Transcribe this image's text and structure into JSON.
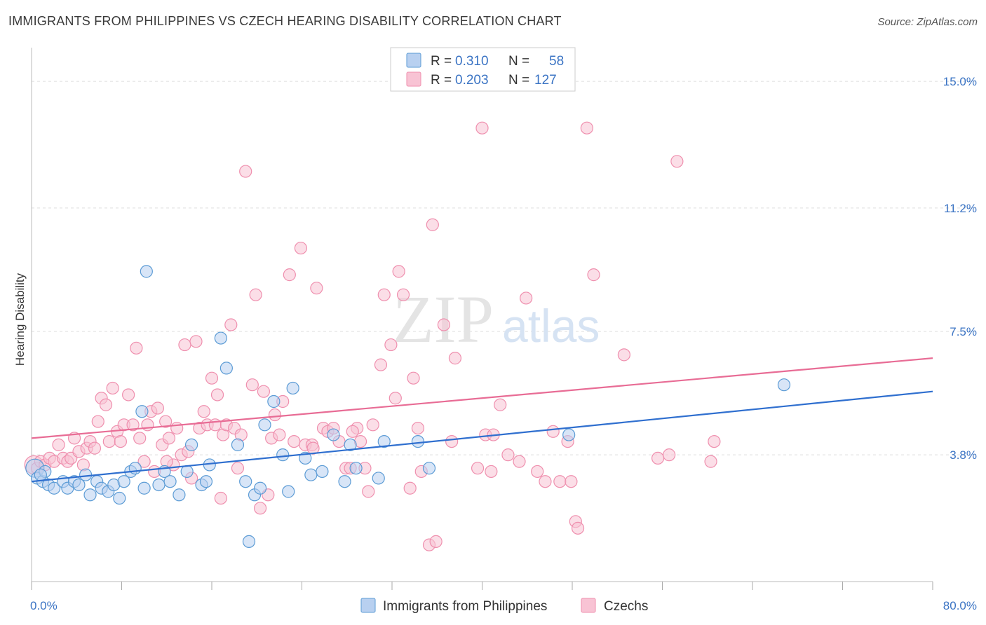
{
  "title": "IMMIGRANTS FROM PHILIPPINES VS CZECH HEARING DISABILITY CORRELATION CHART",
  "source": "Source: ZipAtlas.com",
  "watermark": {
    "left": "ZIP",
    "right": "atlas"
  },
  "colors": {
    "blue": "#5b9bd5",
    "blue_fill": "#b8d0f0",
    "blue_line": "#2f6fcf",
    "pink": "#ef8fae",
    "pink_fill": "#f8c3d4",
    "pink_line": "#e86c95",
    "tick_text": "#3b74c4",
    "grid": "#dddddd"
  },
  "legend": {
    "rows": [
      {
        "r_label": "R =",
        "r_value": "0.310",
        "n_label": "N =",
        "n_value": "58",
        "series": "blue"
      },
      {
        "r_label": "R =",
        "r_value": "0.203",
        "n_label": "N =",
        "n_value": "127",
        "series": "pink"
      }
    ]
  },
  "bottom_legend": [
    {
      "label": "Immigrants from Philippines",
      "series": "blue"
    },
    {
      "label": "Czechs",
      "series": "pink"
    }
  ],
  "chart_data": {
    "type": "scatter",
    "ylabel": "Hearing Disability",
    "xlim": [
      0,
      80
    ],
    "ylim": [
      0,
      15.8
    ],
    "x_tick_labels": [
      {
        "value": 0,
        "label": "0.0%"
      },
      {
        "value": 80,
        "label": "80.0%"
      }
    ],
    "y_ticks": [
      {
        "value": 3.8,
        "label": "3.8%"
      },
      {
        "value": 7.5,
        "label": "7.5%"
      },
      {
        "value": 11.2,
        "label": "11.2%"
      },
      {
        "value": 15.0,
        "label": "15.0%"
      }
    ],
    "x_minor_ticks": [
      0,
      8,
      16,
      24,
      32,
      40,
      48,
      56,
      64,
      72,
      80
    ],
    "grid": true,
    "series": [
      {
        "name": "Immigrants from Philippines",
        "color": "blue",
        "trend": {
          "x": [
            0,
            80
          ],
          "y": [
            3.0,
            5.7
          ]
        },
        "points": [
          [
            0.3,
            3.4
          ],
          [
            0.5,
            3.1
          ],
          [
            1.0,
            3.0
          ],
          [
            1.5,
            2.9
          ],
          [
            2.0,
            2.8
          ],
          [
            2.8,
            3.0
          ],
          [
            3.2,
            2.8
          ],
          [
            3.8,
            3.0
          ],
          [
            4.2,
            2.9
          ],
          [
            4.8,
            3.2
          ],
          [
            5.2,
            2.6
          ],
          [
            5.8,
            3.0
          ],
          [
            6.2,
            2.8
          ],
          [
            6.8,
            2.7
          ],
          [
            7.3,
            2.9
          ],
          [
            7.8,
            2.5
          ],
          [
            8.2,
            3.0
          ],
          [
            8.8,
            3.3
          ],
          [
            9.2,
            3.4
          ],
          [
            10.0,
            2.8
          ],
          [
            10.2,
            9.3
          ],
          [
            9.8,
            5.1
          ],
          [
            11.3,
            2.9
          ],
          [
            11.8,
            3.3
          ],
          [
            12.3,
            3.0
          ],
          [
            13.1,
            2.6
          ],
          [
            13.8,
            3.3
          ],
          [
            14.2,
            4.1
          ],
          [
            15.1,
            2.9
          ],
          [
            15.5,
            3.0
          ],
          [
            15.8,
            3.5
          ],
          [
            16.8,
            7.3
          ],
          [
            17.3,
            6.4
          ],
          [
            18.3,
            4.1
          ],
          [
            19.0,
            3.0
          ],
          [
            19.8,
            2.6
          ],
          [
            20.3,
            2.8
          ],
          [
            20.7,
            4.7
          ],
          [
            21.5,
            5.4
          ],
          [
            22.3,
            3.8
          ],
          [
            22.8,
            2.7
          ],
          [
            23.2,
            5.8
          ],
          [
            24.3,
            3.7
          ],
          [
            24.8,
            3.2
          ],
          [
            25.8,
            3.3
          ],
          [
            26.8,
            4.4
          ],
          [
            27.8,
            3.0
          ],
          [
            28.3,
            4.1
          ],
          [
            28.8,
            3.4
          ],
          [
            30.8,
            3.1
          ],
          [
            31.3,
            4.2
          ],
          [
            34.3,
            4.2
          ],
          [
            35.3,
            3.4
          ],
          [
            19.3,
            1.2
          ],
          [
            66.8,
            5.9
          ],
          [
            47.7,
            4.4
          ],
          [
            1.2,
            3.3
          ],
          [
            0.8,
            3.2
          ]
        ]
      },
      {
        "name": "Czechs",
        "color": "pink",
        "trend": {
          "x": [
            0,
            80
          ],
          "y": [
            4.3,
            6.7
          ]
        },
        "points": [
          [
            0.2,
            3.5
          ],
          [
            0.5,
            3.4
          ],
          [
            0.8,
            3.6
          ],
          [
            1.2,
            3.5
          ],
          [
            1.6,
            3.7
          ],
          [
            2.0,
            3.6
          ],
          [
            2.4,
            4.1
          ],
          [
            2.8,
            3.7
          ],
          [
            3.2,
            3.6
          ],
          [
            3.5,
            3.7
          ],
          [
            3.8,
            4.3
          ],
          [
            4.2,
            3.9
          ],
          [
            4.6,
            3.5
          ],
          [
            4.9,
            4.0
          ],
          [
            5.2,
            4.2
          ],
          [
            5.6,
            4.0
          ],
          [
            5.9,
            4.8
          ],
          [
            6.2,
            5.5
          ],
          [
            6.6,
            5.3
          ],
          [
            6.9,
            4.2
          ],
          [
            7.2,
            5.8
          ],
          [
            7.6,
            4.5
          ],
          [
            7.9,
            4.2
          ],
          [
            8.2,
            4.7
          ],
          [
            8.6,
            5.6
          ],
          [
            9.0,
            4.7
          ],
          [
            9.3,
            7.0
          ],
          [
            9.6,
            4.3
          ],
          [
            10.0,
            3.6
          ],
          [
            10.3,
            4.7
          ],
          [
            10.6,
            5.1
          ],
          [
            10.9,
            3.3
          ],
          [
            11.2,
            5.2
          ],
          [
            11.6,
            4.1
          ],
          [
            11.9,
            4.8
          ],
          [
            12.2,
            4.3
          ],
          [
            12.6,
            3.5
          ],
          [
            12.9,
            4.6
          ],
          [
            13.3,
            3.8
          ],
          [
            13.6,
            7.1
          ],
          [
            13.9,
            3.9
          ],
          [
            14.2,
            3.1
          ],
          [
            14.6,
            7.2
          ],
          [
            14.9,
            4.6
          ],
          [
            15.3,
            5.1
          ],
          [
            15.6,
            4.7
          ],
          [
            16.0,
            6.1
          ],
          [
            16.3,
            4.7
          ],
          [
            16.8,
            2.5
          ],
          [
            17.0,
            4.4
          ],
          [
            17.3,
            4.7
          ],
          [
            17.7,
            7.7
          ],
          [
            18.0,
            4.6
          ],
          [
            18.3,
            3.4
          ],
          [
            18.6,
            4.4
          ],
          [
            19.0,
            12.3
          ],
          [
            19.6,
            5.9
          ],
          [
            19.9,
            8.6
          ],
          [
            20.3,
            2.2
          ],
          [
            20.6,
            5.7
          ],
          [
            21.0,
            2.6
          ],
          [
            21.3,
            4.3
          ],
          [
            21.6,
            5.0
          ],
          [
            22.0,
            4.4
          ],
          [
            22.3,
            5.4
          ],
          [
            22.9,
            9.2
          ],
          [
            23.3,
            4.2
          ],
          [
            23.9,
            10.0
          ],
          [
            24.3,
            4.1
          ],
          [
            24.9,
            4.1
          ],
          [
            25.3,
            8.8
          ],
          [
            25.9,
            4.6
          ],
          [
            26.3,
            4.5
          ],
          [
            26.8,
            4.6
          ],
          [
            27.3,
            4.2
          ],
          [
            27.9,
            3.4
          ],
          [
            28.3,
            3.4
          ],
          [
            28.9,
            4.6
          ],
          [
            29.2,
            4.2
          ],
          [
            29.6,
            3.4
          ],
          [
            29.9,
            2.7
          ],
          [
            30.3,
            4.7
          ],
          [
            31.0,
            6.5
          ],
          [
            31.3,
            8.6
          ],
          [
            31.9,
            7.1
          ],
          [
            32.3,
            5.5
          ],
          [
            32.6,
            9.3
          ],
          [
            33.0,
            8.6
          ],
          [
            33.6,
            2.8
          ],
          [
            33.9,
            6.1
          ],
          [
            34.3,
            4.6
          ],
          [
            34.6,
            3.3
          ],
          [
            35.3,
            1.1
          ],
          [
            35.9,
            1.2
          ],
          [
            35.6,
            10.7
          ],
          [
            36.6,
            7.7
          ],
          [
            37.6,
            6.7
          ],
          [
            39.6,
            3.4
          ],
          [
            40.0,
            13.6
          ],
          [
            40.3,
            4.4
          ],
          [
            41.0,
            4.4
          ],
          [
            41.6,
            5.3
          ],
          [
            42.3,
            3.8
          ],
          [
            43.3,
            3.6
          ],
          [
            43.9,
            8.5
          ],
          [
            44.9,
            3.3
          ],
          [
            45.6,
            3.0
          ],
          [
            46.3,
            4.5
          ],
          [
            46.9,
            3.0
          ],
          [
            47.6,
            4.2
          ],
          [
            47.9,
            3.0
          ],
          [
            48.3,
            1.8
          ],
          [
            48.5,
            1.6
          ],
          [
            49.3,
            13.6
          ],
          [
            49.9,
            9.2
          ],
          [
            52.6,
            6.8
          ],
          [
            55.6,
            3.7
          ],
          [
            56.6,
            3.8
          ],
          [
            57.3,
            12.6
          ],
          [
            60.3,
            3.6
          ],
          [
            60.6,
            4.2
          ],
          [
            40.8,
            3.3
          ],
          [
            37.3,
            4.2
          ],
          [
            28.5,
            4.5
          ],
          [
            25.0,
            4.0
          ],
          [
            16.5,
            5.6
          ],
          [
            12.0,
            3.6
          ]
        ]
      }
    ]
  }
}
